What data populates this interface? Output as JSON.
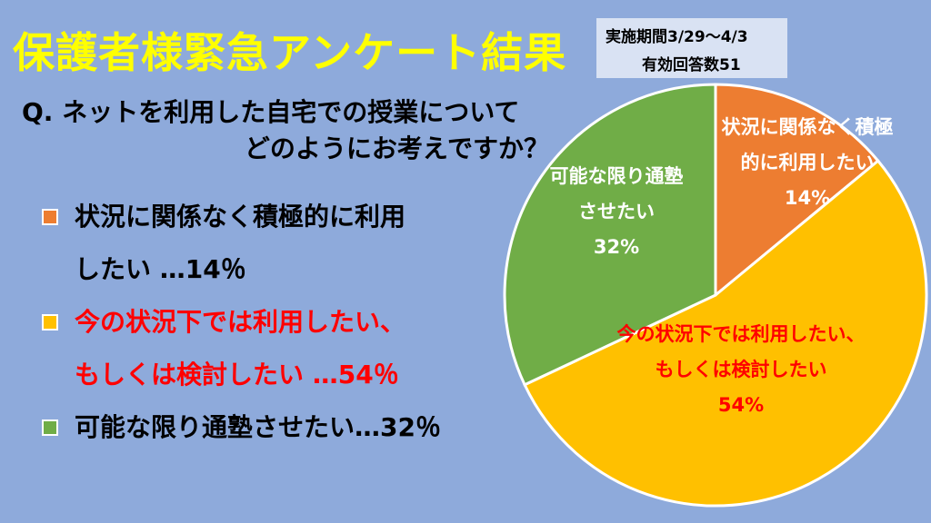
{
  "title": "保護者様緊急アンケート結果",
  "survey": {
    "period": "実施期間3/29～4/3",
    "responses": "有効回答数51"
  },
  "question": {
    "line1": "Q. ネットを利用した自宅での授業について",
    "line2": "どのようにお考えですか？"
  },
  "legend": [
    {
      "lines": [
        "状況に関係なく積極的に利用",
        "したい …14％"
      ]
    },
    {
      "lines": [
        "今の状況下では利用したい、",
        "もしくは検討したい …54％"
      ]
    },
    {
      "lines": [
        "可能な限り通塾させたい…32％"
      ]
    }
  ],
  "colors": {
    "background": "#8eaadb",
    "title": "#ffff00",
    "slice1": "#ed7d31",
    "slice2": "#ffc000",
    "slice3": "#70ad47",
    "highlight_text": "#ff0000"
  },
  "chart_data": {
    "type": "pie",
    "slices": [
      {
        "label_lines": [
          "状況に関係なく積極",
          "的に利用したい"
        ],
        "value": 14,
        "value_label": "14%",
        "color": "#ed7d31",
        "text_color": "#ffffff"
      },
      {
        "label_lines": [
          "今の状況下では利用したい、",
          "もしくは検討したい"
        ],
        "value": 54,
        "value_label": "54%",
        "color": "#ffc000",
        "text_color": "#ff0000"
      },
      {
        "label_lines": [
          "可能な限り通塾",
          "させたい"
        ],
        "value": 32,
        "value_label": "32%",
        "color": "#70ad47",
        "text_color": "#ffffff"
      }
    ],
    "start": "top",
    "direction": "clockwise"
  }
}
